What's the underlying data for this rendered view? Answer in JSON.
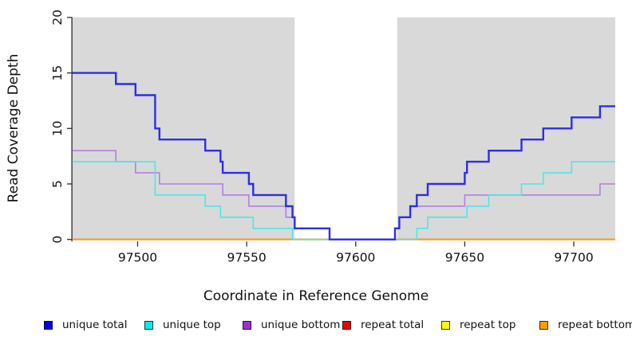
{
  "chart_data": {
    "type": "line",
    "subtype": "step-coverage-plot",
    "title": "",
    "xlabel": "Coordinate in Reference Genome",
    "ylabel": "Read Coverage Depth",
    "xlim": [
      97470,
      97719
    ],
    "ylim": [
      0,
      20
    ],
    "grid": false,
    "x_ticks": [
      97500,
      97550,
      97600,
      97650,
      97700
    ],
    "x_tick_labels": [
      "97500",
      "97550",
      "97600",
      "97650",
      "97700"
    ],
    "y_ticks": [
      0,
      5,
      10,
      15,
      20
    ],
    "y_tick_labels": [
      "0",
      "5",
      "10",
      "15",
      "20"
    ],
    "plot_background": "#ffffff",
    "shaded_regions": [
      {
        "name": "shaded-region-left",
        "from": 97470,
        "to": 97572,
        "color": "#d9d9d9"
      },
      {
        "name": "shaded-region-right",
        "from": 97619,
        "to": 97719,
        "color": "#d9d9d9"
      }
    ],
    "legend_position": "bottom",
    "series": [
      {
        "key": "unique-total",
        "label": "unique total",
        "line_color": "#2d2de8",
        "swatch_color": "#0000ee",
        "line_width": 2.4,
        "draw_order": 6,
        "steps": [
          [
            97470,
            15
          ],
          [
            97490,
            14
          ],
          [
            97499,
            13
          ],
          [
            97508,
            10
          ],
          [
            97510,
            9
          ],
          [
            97531,
            8
          ],
          [
            97538,
            7
          ],
          [
            97539,
            6
          ],
          [
            97551,
            5
          ],
          [
            97553,
            4
          ],
          [
            97568,
            3
          ],
          [
            97571,
            2
          ],
          [
            97572,
            1
          ],
          [
            97588,
            0
          ],
          [
            97618,
            1
          ],
          [
            97620,
            2
          ],
          [
            97625,
            3
          ],
          [
            97628,
            4
          ],
          [
            97633,
            5
          ],
          [
            97650,
            6
          ],
          [
            97651,
            7
          ],
          [
            97661,
            8
          ],
          [
            97676,
            9
          ],
          [
            97686,
            10
          ],
          [
            97699,
            11
          ],
          [
            97712,
            12
          ]
        ]
      },
      {
        "key": "unique-top",
        "label": "unique top",
        "line_color": "#4ae8e8",
        "swatch_color": "#00eeee",
        "line_width": 1.6,
        "draw_order": 5,
        "steps": [
          [
            97470,
            7
          ],
          [
            97508,
            4
          ],
          [
            97531,
            3
          ],
          [
            97538,
            2
          ],
          [
            97553,
            1
          ],
          [
            97571,
            0
          ],
          [
            97628,
            1
          ],
          [
            97633,
            2
          ],
          [
            97651,
            3
          ],
          [
            97661,
            4
          ],
          [
            97676,
            5
          ],
          [
            97686,
            6
          ],
          [
            97699,
            7
          ]
        ]
      },
      {
        "key": "unique-bottom",
        "label": "unique bottom",
        "line_color": "#b47ee4",
        "swatch_color": "#9d2fd1",
        "line_width": 1.6,
        "draw_order": 4,
        "steps": [
          [
            97470,
            8
          ],
          [
            97490,
            7
          ],
          [
            97499,
            6
          ],
          [
            97510,
            5
          ],
          [
            97539,
            4
          ],
          [
            97551,
            3
          ],
          [
            97568,
            2
          ],
          [
            97572,
            1
          ],
          [
            97588,
            0
          ],
          [
            97618,
            1
          ],
          [
            97620,
            2
          ],
          [
            97625,
            3
          ],
          [
            97650,
            4
          ],
          [
            97712,
            5
          ]
        ]
      },
      {
        "key": "repeat-total",
        "label": "repeat total",
        "line_color": "#ee0000",
        "swatch_color": "#ee0000",
        "line_width": 1.6,
        "draw_order": 1,
        "steps": [
          [
            97470,
            0
          ]
        ]
      },
      {
        "key": "repeat-top",
        "label": "repeat top",
        "line_color": "#ffff00",
        "swatch_color": "#ffff00",
        "line_width": 1.6,
        "draw_order": 2,
        "steps": [
          [
            97470,
            0
          ]
        ]
      },
      {
        "key": "repeat-bottom",
        "label": "repeat bottom",
        "line_color": "#ff9a1e",
        "swatch_color": "#ff9d00",
        "line_width": 2.2,
        "draw_order": 3,
        "steps": [
          [
            97470,
            0
          ]
        ]
      }
    ],
    "axis_color": "#2b2b2b",
    "tick_label_color": "#111111"
  }
}
